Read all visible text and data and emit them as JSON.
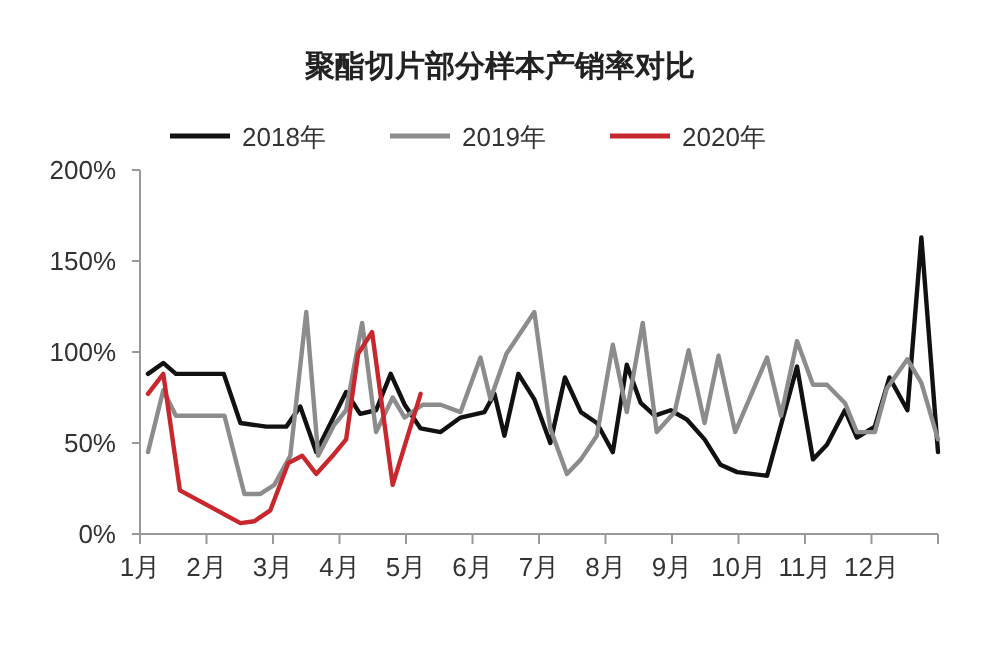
{
  "chart_data": {
    "type": "line",
    "title": "聚酯切片部分样本产销率对比",
    "legend": "top",
    "grid": false,
    "marker": "none",
    "line_style": "solid",
    "xlim": [
      1,
      13
    ],
    "xticks": [
      {
        "value": 1,
        "label": "1月"
      },
      {
        "value": 2,
        "label": "2月"
      },
      {
        "value": 3,
        "label": "3月"
      },
      {
        "value": 4,
        "label": "4月"
      },
      {
        "value": 5,
        "label": "5月"
      },
      {
        "value": 6,
        "label": "6月"
      },
      {
        "value": 7,
        "label": "7月"
      },
      {
        "value": 8,
        "label": "8月"
      },
      {
        "value": 9,
        "label": "9月"
      },
      {
        "value": 10,
        "label": "10月"
      },
      {
        "value": 11,
        "label": "11月"
      },
      {
        "value": 12,
        "label": "12月"
      },
      {
        "value": 13,
        "label": null
      }
    ],
    "ylim": [
      0,
      200
    ],
    "yticks": [
      {
        "value": 0,
        "label": "0%"
      },
      {
        "value": 50,
        "label": "50%"
      },
      {
        "value": 100,
        "label": "100%"
      },
      {
        "value": 150,
        "label": "150%"
      },
      {
        "value": 200,
        "label": "200%"
      }
    ],
    "series": [
      {
        "name": "2018年",
        "color": "#111111",
        "x": [
          1.12,
          1.35,
          1.54,
          2.26,
          2.51,
          2.9,
          3.2,
          3.41,
          3.65,
          4.1,
          4.31,
          4.55,
          4.77,
          4.98,
          5.22,
          5.52,
          5.82,
          6.18,
          6.33,
          6.48,
          6.69,
          6.93,
          7.17,
          7.39,
          7.63,
          7.87,
          8.11,
          8.32,
          8.53,
          8.74,
          8.98,
          9.22,
          9.49,
          9.73,
          9.98,
          10.43,
          10.88,
          11.12,
          11.33,
          11.6,
          11.78,
          12.05,
          12.27,
          12.54,
          12.75,
          13
        ],
        "values": [
          88,
          94,
          88,
          88,
          61,
          59,
          59,
          70,
          45,
          78,
          66,
          68,
          88,
          71,
          58,
          56,
          64,
          67,
          77,
          54,
          88,
          74,
          50,
          86,
          67,
          61,
          45,
          93,
          72,
          65,
          68,
          63,
          52,
          38,
          34,
          32,
          92,
          41,
          49,
          68,
          53,
          59,
          86,
          68,
          163,
          45
        ]
      },
      {
        "name": "2019年",
        "color": "#8c8c8c",
        "x": [
          1.12,
          1.35,
          1.54,
          2.27,
          2.57,
          2.81,
          3.02,
          3.26,
          3.5,
          3.68,
          3.92,
          4.1,
          4.34,
          4.55,
          4.8,
          4.98,
          5.25,
          5.52,
          5.82,
          6.12,
          6.27,
          6.51,
          6.93,
          7.17,
          7.42,
          7.63,
          7.87,
          8.11,
          8.32,
          8.56,
          8.77,
          9.04,
          9.25,
          9.49,
          9.7,
          9.95,
          10.43,
          10.64,
          10.88,
          11.12,
          11.33,
          11.6,
          11.78,
          12.05,
          12.23,
          12.54,
          12.75,
          13
        ],
        "values": [
          45,
          79,
          65,
          65,
          22,
          22,
          27,
          43,
          122,
          43,
          60,
          68,
          116,
          56,
          75,
          64,
          71,
          71,
          67,
          97,
          74,
          99,
          122,
          58,
          33,
          41,
          54,
          104,
          67,
          116,
          56,
          67,
          101,
          61,
          98,
          56,
          97,
          65,
          106,
          82,
          82,
          72,
          56,
          56,
          80,
          96,
          83,
          52
        ]
      },
      {
        "name": "2020年",
        "color": "#c8282d",
        "x": [
          1.12,
          1.35,
          1.6,
          2.51,
          2.72,
          2.96,
          3.23,
          3.44,
          3.65,
          3.92,
          4.1,
          4.28,
          4.49,
          4.8,
          5.22
        ],
        "values": [
          77,
          88,
          24,
          6,
          7,
          13,
          39,
          43,
          33,
          44,
          52,
          99,
          111,
          27,
          77
        ]
      }
    ]
  }
}
